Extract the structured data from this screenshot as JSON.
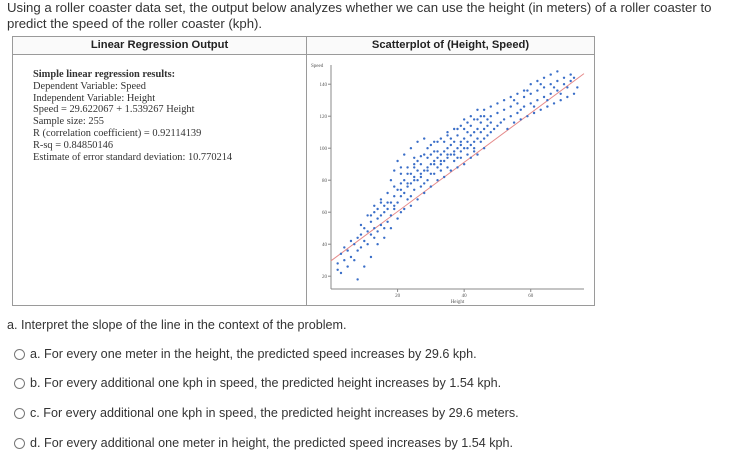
{
  "intro": "Using a roller coaster data set, the output below analyzes whether we can use the height (in meters) of a roller coaster to predict the speed of the roller coaster (kph).",
  "left_header": "Linear Regression Output",
  "right_header": "Scatterplot of (Height, Speed)",
  "results": {
    "heading": "Simple linear regression results:",
    "lines": [
      "Dependent Variable: Speed",
      "Independent Variable: Height",
      "Speed = 29.622067 + 1.539267 Height",
      "Sample size: 255",
      "R (correlation coefficient) = 0.92114139",
      "R-sq = 0.84850146",
      "Estimate of error standard deviation: 10.770214"
    ]
  },
  "chart_data": {
    "type": "scatter",
    "title": "Scatterplot of (Height, Speed)",
    "xlabel": "Height",
    "ylabel": "Speed",
    "xticks": [
      20,
      40,
      60
    ],
    "yticks": [
      20,
      40,
      60,
      80,
      100,
      120,
      140
    ],
    "xlim": [
      0,
      76
    ],
    "ylim": [
      12,
      152
    ],
    "regression_line": {
      "intercept": 29.622067,
      "slope": 1.539267
    },
    "points": [
      [
        2,
        24
      ],
      [
        3,
        22
      ],
      [
        2,
        28
      ],
      [
        4,
        30
      ],
      [
        3,
        34
      ],
      [
        5,
        26
      ],
      [
        4,
        38
      ],
      [
        6,
        32
      ],
      [
        5,
        36
      ],
      [
        7,
        40
      ],
      [
        6,
        42
      ],
      [
        7,
        30
      ],
      [
        8,
        36
      ],
      [
        8,
        44
      ],
      [
        9,
        38
      ],
      [
        9,
        46
      ],
      [
        10,
        42
      ],
      [
        11,
        48
      ],
      [
        10,
        50
      ],
      [
        12,
        46
      ],
      [
        11,
        40
      ],
      [
        12,
        54
      ],
      [
        13,
        50
      ],
      [
        13,
        44
      ],
      [
        14,
        48
      ],
      [
        14,
        56
      ],
      [
        15,
        52
      ],
      [
        15,
        58
      ],
      [
        16,
        50
      ],
      [
        16,
        60
      ],
      [
        17,
        54
      ],
      [
        17,
        62
      ],
      [
        18,
        58
      ],
      [
        18,
        66
      ],
      [
        12,
        58
      ],
      [
        14,
        62
      ],
      [
        15,
        66
      ],
      [
        13,
        60
      ],
      [
        16,
        64
      ],
      [
        9,
        52
      ],
      [
        19,
        62
      ],
      [
        19,
        70
      ],
      [
        20,
        66
      ],
      [
        20,
        74
      ],
      [
        21,
        70
      ],
      [
        21,
        78
      ],
      [
        22,
        72
      ],
      [
        22,
        80
      ],
      [
        23,
        76
      ],
      [
        23,
        84
      ],
      [
        24,
        78
      ],
      [
        24,
        70
      ],
      [
        25,
        82
      ],
      [
        25,
        88
      ],
      [
        26,
        80
      ],
      [
        26,
        86
      ],
      [
        27,
        84
      ],
      [
        27,
        90
      ],
      [
        28,
        86
      ],
      [
        28,
        78
      ],
      [
        29,
        88
      ],
      [
        29,
        94
      ],
      [
        30,
        90
      ],
      [
        30,
        84
      ],
      [
        31,
        92
      ],
      [
        31,
        98
      ],
      [
        32,
        94
      ],
      [
        32,
        88
      ],
      [
        33,
        96
      ],
      [
        33,
        90
      ],
      [
        34,
        98
      ],
      [
        34,
        92
      ],
      [
        35,
        100
      ],
      [
        35,
        94
      ],
      [
        36,
        102
      ],
      [
        36,
        96
      ],
      [
        37,
        98
      ],
      [
        37,
        104
      ],
      [
        38,
        100
      ],
      [
        38,
        94
      ],
      [
        39,
        104
      ],
      [
        39,
        98
      ],
      [
        40,
        106
      ],
      [
        40,
        100
      ],
      [
        41,
        104
      ],
      [
        41,
        110
      ],
      [
        42,
        108
      ],
      [
        42,
        102
      ],
      [
        43,
        110
      ],
      [
        43,
        104
      ],
      [
        44,
        112
      ],
      [
        44,
        106
      ],
      [
        45,
        110
      ],
      [
        45,
        116
      ],
      [
        46,
        112
      ],
      [
        46,
        106
      ],
      [
        47,
        114
      ],
      [
        47,
        118
      ],
      [
        48,
        116
      ],
      [
        48,
        110
      ],
      [
        20,
        92
      ],
      [
        22,
        96
      ],
      [
        24,
        100
      ],
      [
        26,
        104
      ],
      [
        28,
        106
      ],
      [
        18,
        80
      ],
      [
        25,
        94
      ],
      [
        30,
        102
      ],
      [
        32,
        104
      ],
      [
        35,
        108
      ],
      [
        38,
        108
      ],
      [
        40,
        112
      ],
      [
        42,
        114
      ],
      [
        44,
        118
      ],
      [
        46,
        120
      ],
      [
        48,
        120
      ],
      [
        50,
        114
      ],
      [
        50,
        122
      ],
      [
        52,
        118
      ],
      [
        52,
        124
      ],
      [
        54,
        120
      ],
      [
        54,
        126
      ],
      [
        56,
        122
      ],
      [
        56,
        128
      ],
      [
        58,
        126
      ],
      [
        58,
        132
      ],
      [
        60,
        128
      ],
      [
        60,
        134
      ],
      [
        62,
        130
      ],
      [
        62,
        136
      ],
      [
        64,
        132
      ],
      [
        64,
        138
      ],
      [
        66,
        134
      ],
      [
        66,
        140
      ],
      [
        68,
        136
      ],
      [
        68,
        142
      ],
      [
        70,
        140
      ],
      [
        70,
        144
      ],
      [
        72,
        142
      ],
      [
        72,
        146
      ],
      [
        55,
        130
      ],
      [
        57,
        124
      ],
      [
        59,
        136
      ],
      [
        61,
        126
      ],
      [
        63,
        140
      ],
      [
        65,
        130
      ],
      [
        67,
        138
      ],
      [
        69,
        134
      ],
      [
        71,
        138
      ],
      [
        73,
        144
      ],
      [
        8,
        18
      ],
      [
        10,
        26
      ],
      [
        12,
        32
      ],
      [
        14,
        40
      ],
      [
        16,
        44
      ],
      [
        18,
        50
      ],
      [
        20,
        56
      ],
      [
        22,
        62
      ],
      [
        24,
        64
      ],
      [
        26,
        68
      ],
      [
        28,
        72
      ],
      [
        30,
        76
      ],
      [
        32,
        80
      ],
      [
        34,
        82
      ],
      [
        36,
        86
      ],
      [
        38,
        88
      ],
      [
        40,
        90
      ],
      [
        42,
        94
      ],
      [
        44,
        96
      ],
      [
        46,
        100
      ],
      [
        27,
        95
      ],
      [
        29,
        100
      ],
      [
        31,
        104
      ],
      [
        33,
        106
      ],
      [
        35,
        110
      ],
      [
        37,
        112
      ],
      [
        39,
        114
      ],
      [
        41,
        116
      ],
      [
        43,
        118
      ],
      [
        45,
        120
      ],
      [
        21,
        84
      ],
      [
        23,
        88
      ],
      [
        25,
        90
      ],
      [
        19,
        76
      ],
      [
        17,
        72
      ],
      [
        15,
        68
      ],
      [
        13,
        64
      ],
      [
        11,
        58
      ],
      [
        21,
        60
      ],
      [
        23,
        68
      ],
      [
        25,
        74
      ],
      [
        27,
        76
      ],
      [
        29,
        80
      ],
      [
        31,
        84
      ],
      [
        33,
        86
      ],
      [
        35,
        88
      ],
      [
        37,
        92
      ],
      [
        39,
        94
      ],
      [
        41,
        96
      ],
      [
        43,
        98
      ],
      [
        19,
        86
      ],
      [
        21,
        88
      ],
      [
        24,
        84
      ],
      [
        26,
        92
      ],
      [
        28,
        96
      ],
      [
        30,
        96
      ],
      [
        32,
        98
      ],
      [
        34,
        104
      ],
      [
        36,
        106
      ],
      [
        38,
        112
      ],
      [
        40,
        118
      ],
      [
        42,
        120
      ],
      [
        44,
        124
      ],
      [
        46,
        124
      ],
      [
        48,
        126
      ],
      [
        50,
        128
      ],
      [
        52,
        130
      ],
      [
        54,
        132
      ],
      [
        56,
        134
      ],
      [
        58,
        136
      ],
      [
        60,
        140
      ],
      [
        62,
        142
      ],
      [
        64,
        144
      ],
      [
        66,
        146
      ],
      [
        68,
        148
      ],
      [
        47,
        108
      ],
      [
        49,
        112
      ],
      [
        51,
        116
      ],
      [
        53,
        112
      ],
      [
        55,
        116
      ],
      [
        57,
        118
      ],
      [
        59,
        120
      ],
      [
        61,
        122
      ],
      [
        63,
        124
      ],
      [
        65,
        126
      ],
      [
        67,
        128
      ],
      [
        69,
        130
      ],
      [
        71,
        132
      ],
      [
        73,
        134
      ],
      [
        74,
        138
      ],
      [
        45,
        104
      ],
      [
        43,
        100
      ],
      [
        41,
        100
      ],
      [
        39,
        102
      ],
      [
        37,
        96
      ],
      [
        35,
        96
      ],
      [
        33,
        92
      ],
      [
        31,
        90
      ],
      [
        29,
        86
      ],
      [
        27,
        82
      ],
      [
        25,
        80
      ],
      [
        23,
        78
      ],
      [
        21,
        74
      ],
      [
        19,
        64
      ],
      [
        17,
        66
      ]
    ]
  },
  "question": "a. Interpret the slope of the line in the context of the problem.",
  "options": [
    "a. For every one meter in the height, the predicted speed increases by 29.6 kph.",
    "b. For every additional one kph in speed, the predicted height increases by 1.54 kph.",
    "c. For every additional one kph in speed, the predicted height increases by 29.6 meters.",
    "d. For every additional one meter in height, the predicted speed increases by 1.54 kph."
  ],
  "colors": {
    "point": "#3a6ec8",
    "line": "#e58a8a",
    "axis": "#888888"
  }
}
